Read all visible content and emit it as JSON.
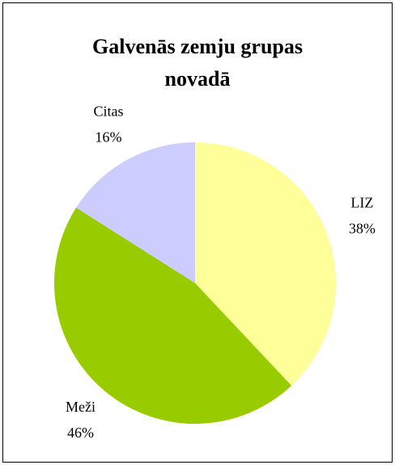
{
  "chart_data": {
    "type": "pie",
    "title": "Galvenās zemju grupas novadā",
    "categories": [
      "LIZ",
      "Meži",
      "Citas"
    ],
    "values": [
      38,
      46,
      16
    ],
    "value_labels": [
      "38%",
      "46%",
      "16%"
    ],
    "colors": [
      "#FFFF99",
      "#99CC00",
      "#CCCCFF"
    ]
  }
}
